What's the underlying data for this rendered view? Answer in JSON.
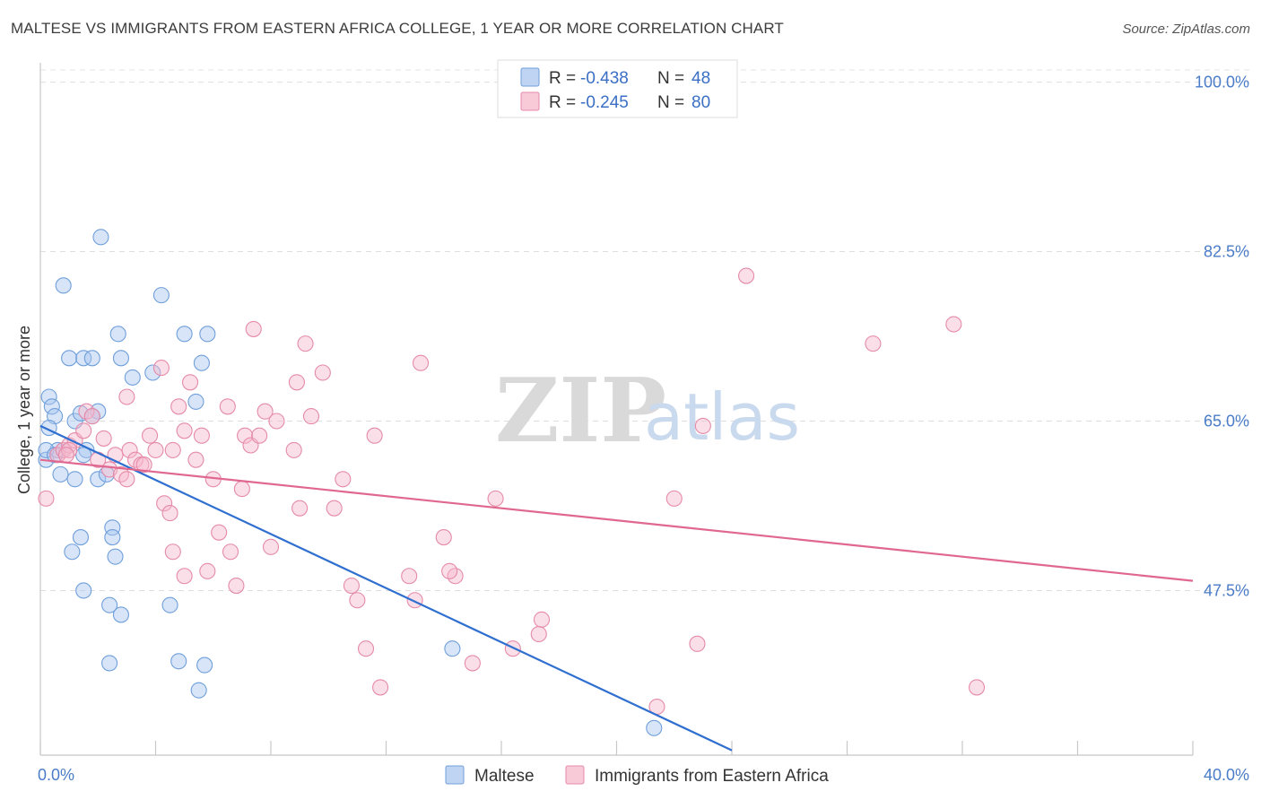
{
  "title": "MALTESE VS IMMIGRANTS FROM EASTERN AFRICA COLLEGE, 1 YEAR OR MORE CORRELATION CHART",
  "source": "Source: ZipAtlas.com",
  "watermark": {
    "zip": "ZIP",
    "atlas": "atlas"
  },
  "legend": {
    "r_label": "R =",
    "n_label": "N =",
    "rows": [
      {
        "r": "-0.438",
        "n": "48",
        "color": "#a9c6ef"
      },
      {
        "r": "-0.245",
        "n": "80",
        "color": "#f6b8cb"
      }
    ]
  },
  "chart_data": {
    "type": "scatter",
    "title": "MALTESE VS IMMIGRANTS FROM EASTERN AFRICA COLLEGE, 1 YEAR OR MORE CORRELATION CHART",
    "xlabel": "",
    "ylabel": "College, 1 year or more",
    "xlim": [
      0,
      40
    ],
    "ylim": [
      30.5,
      102
    ],
    "x_tick_labels": [
      "0.0%",
      "40.0%"
    ],
    "y_ticks": [
      47.5,
      65.0,
      82.5,
      100.0
    ],
    "y_tick_labels": [
      "47.5%",
      "65.0%",
      "82.5%",
      "100.0%"
    ],
    "grid": true,
    "legend_position": "top-center",
    "series": [
      {
        "name": "Maltese",
        "color": "#a9c6ef",
        "stroke": "#6f9fdb",
        "trend": {
          "x": [
            0.0,
            24.0
          ],
          "y": [
            64.5,
            31.0
          ],
          "color": "#2f6fd0"
        },
        "points": [
          [
            0.3,
            67.5
          ],
          [
            0.4,
            66.5
          ],
          [
            0.5,
            65.5
          ],
          [
            0.3,
            64.3
          ],
          [
            0.6,
            62.0
          ],
          [
            0.8,
            62.0
          ],
          [
            0.7,
            59.5
          ],
          [
            1.0,
            71.5
          ],
          [
            1.5,
            71.5
          ],
          [
            1.8,
            71.5
          ],
          [
            2.0,
            66.0
          ],
          [
            1.2,
            65.0
          ],
          [
            1.4,
            65.8
          ],
          [
            1.8,
            65.5
          ],
          [
            1.6,
            62.0
          ],
          [
            1.5,
            61.5
          ],
          [
            1.2,
            59.0
          ],
          [
            2.0,
            59.0
          ],
          [
            2.3,
            59.5
          ],
          [
            0.8,
            79.0
          ],
          [
            2.1,
            84.0
          ],
          [
            2.7,
            74.0
          ],
          [
            2.8,
            71.5
          ],
          [
            3.2,
            69.5
          ],
          [
            3.9,
            70.0
          ],
          [
            4.2,
            78.0
          ],
          [
            5.0,
            74.0
          ],
          [
            5.8,
            74.0
          ],
          [
            5.6,
            71.0
          ],
          [
            5.4,
            67.0
          ],
          [
            1.4,
            53.0
          ],
          [
            1.1,
            51.5
          ],
          [
            2.5,
            54.0
          ],
          [
            2.5,
            53.0
          ],
          [
            2.6,
            51.0
          ],
          [
            1.5,
            47.5
          ],
          [
            2.4,
            46.0
          ],
          [
            2.8,
            45.0
          ],
          [
            4.5,
            46.0
          ],
          [
            2.4,
            40.0
          ],
          [
            4.8,
            40.2
          ],
          [
            5.7,
            39.8
          ],
          [
            5.5,
            37.2
          ],
          [
            14.3,
            41.5
          ],
          [
            21.3,
            33.3
          ],
          [
            0.2,
            61.0
          ],
          [
            0.2,
            62.0
          ],
          [
            0.5,
            61.5
          ]
        ]
      },
      {
        "name": "Immigrants from Eastern Africa",
        "color": "#f6b8cb",
        "stroke": "#e58aa8",
        "trend": {
          "x": [
            0.0,
            40.0
          ],
          "y": [
            61.0,
            48.5
          ],
          "color": "#e0688f"
        },
        "points": [
          [
            0.2,
            57.0
          ],
          [
            0.6,
            61.5
          ],
          [
            0.8,
            62.0
          ],
          [
            1.0,
            62.5
          ],
          [
            1.2,
            63.0
          ],
          [
            1.5,
            64.0
          ],
          [
            1.6,
            66.0
          ],
          [
            1.8,
            65.5
          ],
          [
            2.2,
            63.2
          ],
          [
            2.4,
            60.0
          ],
          [
            2.6,
            61.5
          ],
          [
            2.8,
            59.5
          ],
          [
            3.0,
            59.0
          ],
          [
            3.1,
            62.0
          ],
          [
            3.3,
            61.0
          ],
          [
            3.5,
            60.5
          ],
          [
            3.8,
            63.5
          ],
          [
            4.0,
            62.0
          ],
          [
            4.3,
            56.5
          ],
          [
            4.5,
            55.5
          ],
          [
            4.6,
            62.0
          ],
          [
            4.8,
            66.5
          ],
          [
            5.0,
            64.0
          ],
          [
            5.2,
            69.0
          ],
          [
            5.4,
            61.0
          ],
          [
            5.6,
            63.5
          ],
          [
            6.2,
            53.5
          ],
          [
            6.6,
            51.5
          ],
          [
            6.8,
            48.0
          ],
          [
            7.1,
            63.5
          ],
          [
            7.3,
            62.5
          ],
          [
            7.6,
            63.5
          ],
          [
            7.8,
            66.0
          ],
          [
            8.0,
            52.0
          ],
          [
            8.2,
            65.0
          ],
          [
            7.4,
            74.5
          ],
          [
            8.8,
            62.0
          ],
          [
            8.9,
            69.0
          ],
          [
            9.2,
            73.0
          ],
          [
            9.4,
            65.5
          ],
          [
            9.0,
            56.0
          ],
          [
            9.8,
            70.0
          ],
          [
            10.2,
            56.0
          ],
          [
            10.5,
            59.0
          ],
          [
            10.8,
            48.0
          ],
          [
            11.0,
            46.5
          ],
          [
            11.3,
            41.5
          ],
          [
            11.6,
            63.5
          ],
          [
            11.8,
            37.5
          ],
          [
            12.8,
            49.0
          ],
          [
            13.0,
            46.5
          ],
          [
            13.2,
            71.0
          ],
          [
            14.0,
            53.0
          ],
          [
            14.4,
            49.0
          ],
          [
            14.2,
            49.5
          ],
          [
            15.0,
            40.0
          ],
          [
            15.8,
            57.0
          ],
          [
            16.4,
            41.5
          ],
          [
            17.3,
            43.0
          ],
          [
            17.4,
            44.5
          ],
          [
            5.0,
            49.0
          ],
          [
            5.8,
            49.5
          ],
          [
            4.6,
            51.5
          ],
          [
            3.0,
            67.5
          ],
          [
            4.2,
            70.5
          ],
          [
            6.0,
            59.0
          ],
          [
            22.0,
            57.0
          ],
          [
            22.8,
            42.0
          ],
          [
            23.0,
            64.5
          ],
          [
            24.5,
            80.0
          ],
          [
            28.9,
            73.0
          ],
          [
            31.7,
            75.0
          ],
          [
            32.5,
            37.5
          ],
          [
            21.4,
            35.5
          ],
          [
            6.5,
            66.5
          ],
          [
            2.0,
            61.0
          ],
          [
            1.0,
            62.0
          ],
          [
            0.9,
            61.5
          ],
          [
            3.6,
            60.5
          ],
          [
            7.0,
            58.0
          ]
        ]
      }
    ]
  }
}
